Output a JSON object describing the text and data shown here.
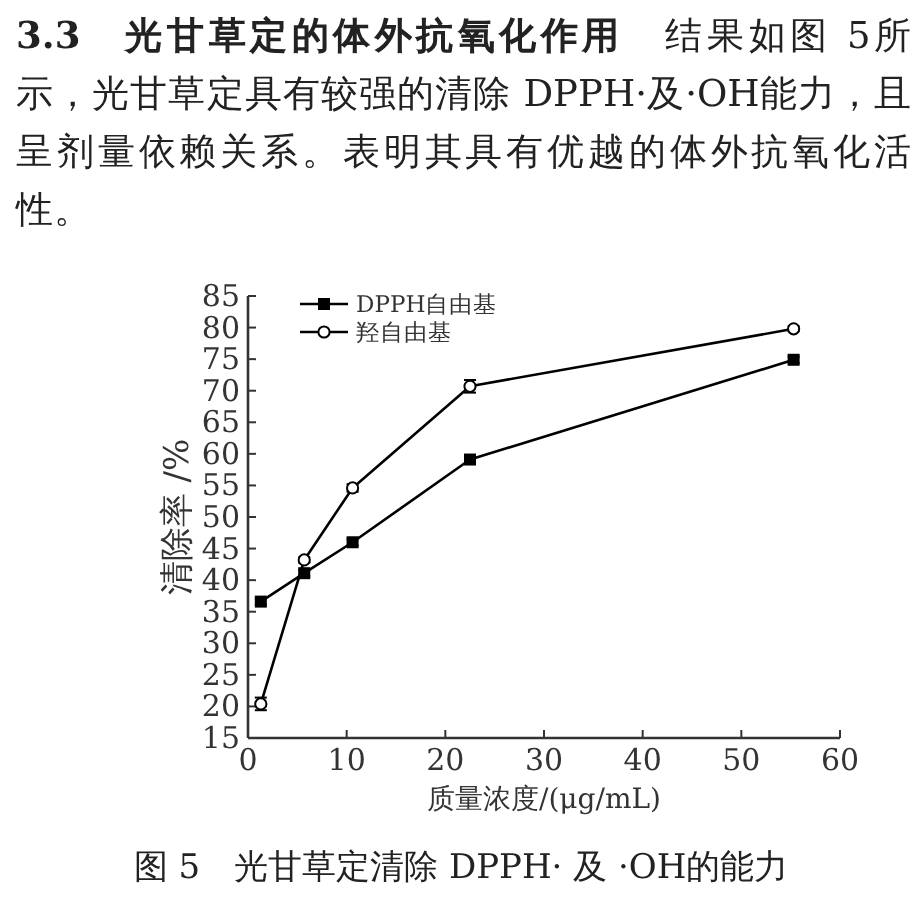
{
  "chart_data": {
    "type": "line",
    "title": "图 5　光甘草定清除 DPPH· 及 ·OH的能力",
    "annotations": [
      "**3.3　光甘草定的体外抗氧化作用**　结果如图 5所示，光甘草定具有较强的清除 DPPH·及·OH能力，且呈剂量依赖关系。表明其具有优越的体外抗氧化活性。"
    ],
    "xlabel": "质量浓度/(μg/mL)",
    "ylabel": "清除率 /%",
    "x": [
      1.3,
      5.7,
      10.6,
      22.5,
      55.3
    ],
    "series": [
      {
        "name": "DPPH自由基",
        "color": "#000000",
        "marker": "square",
        "values": [
          36.6,
          41.1,
          46.0,
          59.1,
          74.9
        ],
        "errors": [
          0.5,
          0.5,
          0.5,
          0.3,
          0.5
        ]
      },
      {
        "name": "羟自由基",
        "color": "#000000",
        "marker": "circle",
        "values": [
          20.4,
          43.2,
          54.6,
          70.7,
          79.8
        ],
        "errors": [
          1,
          0.4,
          0.6,
          1,
          0.4
        ]
      }
    ],
    "xlim": [
      0,
      60
    ],
    "xticks": [
      0,
      10,
      20,
      30,
      40,
      50,
      60
    ],
    "ylim": [
      15,
      85
    ],
    "yticks": [
      15,
      20,
      25,
      30,
      35,
      40,
      45,
      50,
      55,
      60,
      65,
      70,
      75,
      80,
      85
    ],
    "legend": "top left",
    "grid": false
  }
}
